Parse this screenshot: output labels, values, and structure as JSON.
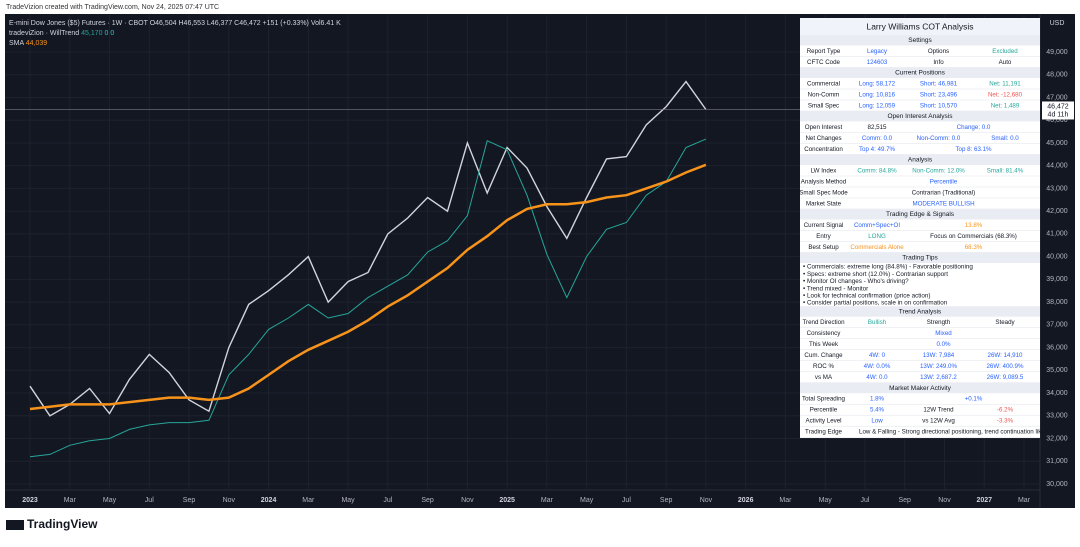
{
  "watermark": "TradeVizion created with TradingView.com, Nov 24, 2025 07:47 UTC",
  "brand": "TradingView",
  "currency": "USD",
  "ohlc": "O46,504 H46,553 L46,377 C46,472 +151 (+0.33%) Vol6.41 K",
  "legend_values": {
    "trend": "45,170",
    "a": "0",
    "b": "0",
    "sma": "44,039"
  },
  "last_price": {
    "label": "46,472",
    "countdown": "4d 11h"
  },
  "chart_data": {
    "type": "line",
    "categories": [
      "2023",
      null,
      "Mar",
      null,
      "May",
      null,
      "Jul",
      null,
      "Sep",
      null,
      "Nov",
      null,
      "2024",
      null,
      "Mar",
      null,
      "May",
      null,
      "Jul",
      null,
      "Sep",
      null,
      "Nov",
      null,
      "2025",
      null,
      "Mar",
      null,
      "May",
      null,
      "Jul",
      null,
      "Sep",
      null,
      "Nov",
      null,
      "2026",
      null,
      "Mar",
      null,
      "May",
      null,
      "Jul",
      null,
      "Sep",
      null,
      "Nov",
      null,
      "2027",
      null,
      "Mar"
    ],
    "series": [
      {
        "name": "E-mini Dow Jones ($5) Futures · 1W · CBOT",
        "color": "#d1d4dc",
        "values": [
          34300,
          33000,
          33500,
          34200,
          33100,
          34600,
          35700,
          34900,
          33700,
          33200,
          36000,
          37900,
          38500,
          39200,
          40000,
          38000,
          38900,
          39300,
          41000,
          41700,
          42600,
          42000,
          45000,
          42800,
          44800,
          43900,
          42200,
          40800,
          42600,
          44300,
          44400,
          45800,
          46600,
          47700,
          46472,
          null,
          null,
          null,
          null,
          null,
          null,
          null,
          null,
          null,
          null,
          null,
          null,
          null,
          null,
          null,
          null
        ]
      },
      {
        "name": "tradeviZion · WillTrend",
        "color": "#26a69a",
        "values": [
          31200,
          31300,
          31700,
          31900,
          32000,
          32400,
          32600,
          32700,
          32700,
          32800,
          34800,
          35700,
          36800,
          37300,
          37900,
          37300,
          37500,
          38200,
          38700,
          39200,
          40200,
          40700,
          41800,
          45100,
          44700,
          42700,
          40100,
          38200,
          40000,
          41200,
          41500,
          42700,
          43300,
          44800,
          45170,
          null,
          null,
          null,
          null,
          null,
          null,
          null,
          null,
          null,
          null,
          null,
          null,
          null,
          null,
          null,
          null
        ]
      },
      {
        "name": "SMA",
        "color": "#f7931a",
        "values": [
          33300,
          33400,
          33500,
          33500,
          33500,
          33600,
          33700,
          33800,
          33800,
          33700,
          33800,
          34200,
          34800,
          35400,
          35900,
          36300,
          36700,
          37200,
          37800,
          38300,
          38900,
          39500,
          40300,
          40900,
          41600,
          42100,
          42300,
          42300,
          42400,
          42600,
          42700,
          43000,
          43300,
          43700,
          44039,
          null,
          null,
          null,
          null,
          null,
          null,
          null,
          null,
          null,
          null,
          null,
          null,
          null,
          null,
          null,
          null
        ]
      }
    ],
    "ylim": [
      29736,
      50627
    ],
    "yticks": [
      {
        "value": 30000,
        "label": "30,000"
      },
      {
        "value": 31000,
        "label": "31,000"
      },
      {
        "value": 32000,
        "label": "32,000"
      },
      {
        "value": 33000,
        "label": "33,000"
      },
      {
        "value": 34000,
        "label": "34,000"
      },
      {
        "value": 35000,
        "label": "35,000"
      },
      {
        "value": 36000,
        "label": "36,000"
      },
      {
        "value": 37000,
        "label": "37,000"
      },
      {
        "value": 38000,
        "label": "38,000"
      },
      {
        "value": 39000,
        "label": "39,000"
      },
      {
        "value": 40000,
        "label": "40,000"
      },
      {
        "value": 41000,
        "label": "41,000"
      },
      {
        "value": 42000,
        "label": "42,000"
      },
      {
        "value": 43000,
        "label": "43,000"
      },
      {
        "value": 44000,
        "label": "44,000"
      },
      {
        "value": 45000,
        "label": "45,000"
      },
      {
        "value": 46000,
        "label": "46,000"
      },
      {
        "value": 47000,
        "label": "47,000"
      },
      {
        "value": 48000,
        "label": "48,000"
      },
      {
        "value": 49000,
        "label": "49,000"
      }
    ],
    "grid": true
  },
  "panel": {
    "title": "Larry Williams COT Analysis",
    "sections": [
      {
        "title": "Settings",
        "rows": [
          [
            "Report Type",
            "Legacy",
            "Options",
            "Excluded"
          ],
          [
            "CFTC Code",
            "124603",
            "Info",
            "Auto"
          ]
        ]
      },
      {
        "title": "Current Positions",
        "rows": [
          [
            "Commercial",
            "Long: 58,172",
            "Short: 46,981",
            "Net: 11,191"
          ],
          [
            "Non-Comm",
            "Long: 10,816",
            "Short: 23,496",
            "Net: -12,680"
          ],
          [
            "Small Spec",
            "Long: 12,059",
            "Short: 10,570",
            "Net: 1,489"
          ]
        ]
      },
      {
        "title": "Open Interest Analysis",
        "rows": [
          [
            "Open Interest",
            "82,515",
            "Change: 0.0"
          ],
          [
            "Net Changes",
            "Comm: 0.0",
            "Non-Comm: 0.0",
            "Small: 0.0"
          ],
          [
            "Concentration",
            "Top 4: 49.7%",
            "Top 8: 63.1%"
          ]
        ]
      },
      {
        "title": "Analysis",
        "rows": [
          [
            "LW Index",
            "Comm: 84.8%",
            "Non-Comm: 12.0%",
            "Small: 81.4%"
          ],
          [
            "Analysis Method",
            "Percentile"
          ],
          [
            "Small Spec Mode",
            "Contrarian (Traditional)"
          ],
          [
            "Market State",
            "MODERATE BULLISH"
          ]
        ]
      },
      {
        "title": "Trading Edge & Signals",
        "rows": [
          [
            "Current Signal",
            "Comm+Spec+OI",
            "13.8%"
          ],
          [
            "Entry",
            "LONG",
            "Focus on Commercials (68.3%)"
          ],
          [
            "Best Setup",
            "Commercials Alone",
            "68.3%"
          ]
        ]
      },
      {
        "title": "Trading Tips",
        "tips": [
          "• Commercials: extreme long (84.8%) - Favorable positioning",
          "• Specs: extreme short (12.0%) - Contrarian support",
          "• Monitor OI changes - Who's driving?",
          "• Trend mixed - Monitor",
          "• Look for technical confirmation (price action)",
          "• Consider partial positions, scale in on confirmation"
        ]
      },
      {
        "title": "Trend Analysis",
        "rows": [
          [
            "Trend Direction",
            "Bullish",
            "Strength",
            "Steady"
          ],
          [
            "Consistency",
            "Mixed"
          ],
          [
            "This Week",
            "0.0%"
          ],
          [
            "Cum. Change",
            "4W: 0",
            "13W: 7,984",
            "26W: 14,910"
          ],
          [
            "ROC %",
            "4W: 0.0%",
            "13W: 249.0%",
            "26W: 400.9%"
          ],
          [
            "vs MA",
            "4W: 0.0",
            "13W: 2,687.2",
            "26W: 9,089.5"
          ]
        ]
      },
      {
        "title": "Market Maker Activity",
        "rows": [
          [
            "Total Spreading",
            "1.8%",
            "+0.1%"
          ],
          [
            "Percentile",
            "5.4%",
            "12W Trend",
            "-6.2%"
          ],
          [
            "Activity Level",
            "Low",
            "vs 12W Avg",
            "-3.3%"
          ],
          [
            "Trading Edge",
            "Low & Falling - Strong directional positioning, trend continuation likely"
          ]
        ]
      }
    ]
  }
}
